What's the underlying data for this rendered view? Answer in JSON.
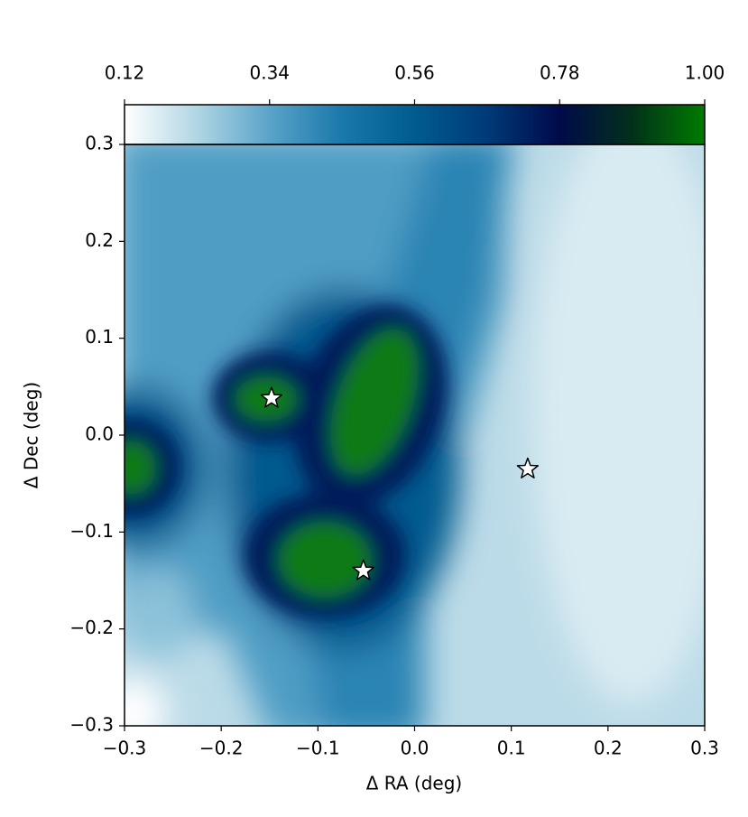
{
  "chart_data": {
    "type": "scatter",
    "xlabel": "Δ RA (deg)",
    "ylabel": "Δ Dec (deg)",
    "xlim": [
      -0.3,
      0.3
    ],
    "ylim": [
      -0.3,
      0.3
    ],
    "xticks": [
      {
        "value": -0.3,
        "label": "−0.3"
      },
      {
        "value": -0.2,
        "label": "−0.2"
      },
      {
        "value": -0.1,
        "label": "−0.1"
      },
      {
        "value": 0,
        "label": "0.0"
      },
      0.1,
      0.2,
      0.3
    ],
    "yticks": [
      {
        "value": -0.3,
        "label": "−0.3"
      },
      {
        "value": -0.2,
        "label": "−0.2"
      },
      {
        "value": -0.1,
        "label": "−0.1"
      },
      {
        "value": 0,
        "label": "0.0"
      },
      0.1,
      0.2,
      0.3
    ],
    "x": [
      -0.148,
      -0.053,
      0.117
    ],
    "values": [
      0.038,
      -0.14,
      -0.035
    ],
    "marker": "star",
    "color": "#ffffff",
    "colorbar": {
      "lim": [
        0.12,
        1.0
      ],
      "ticks": [
        0.12,
        0.34,
        0.56,
        0.78,
        {
          "value": 1.0,
          "label": "1.00"
        }
      ],
      "colors": [
        "#ffffff",
        "#b0d6e4",
        "#5aa3c8",
        "#1a78aa",
        "#005c8e",
        "#003a78",
        "#000a4a",
        "#03301a",
        "#007c00"
      ]
    }
  }
}
